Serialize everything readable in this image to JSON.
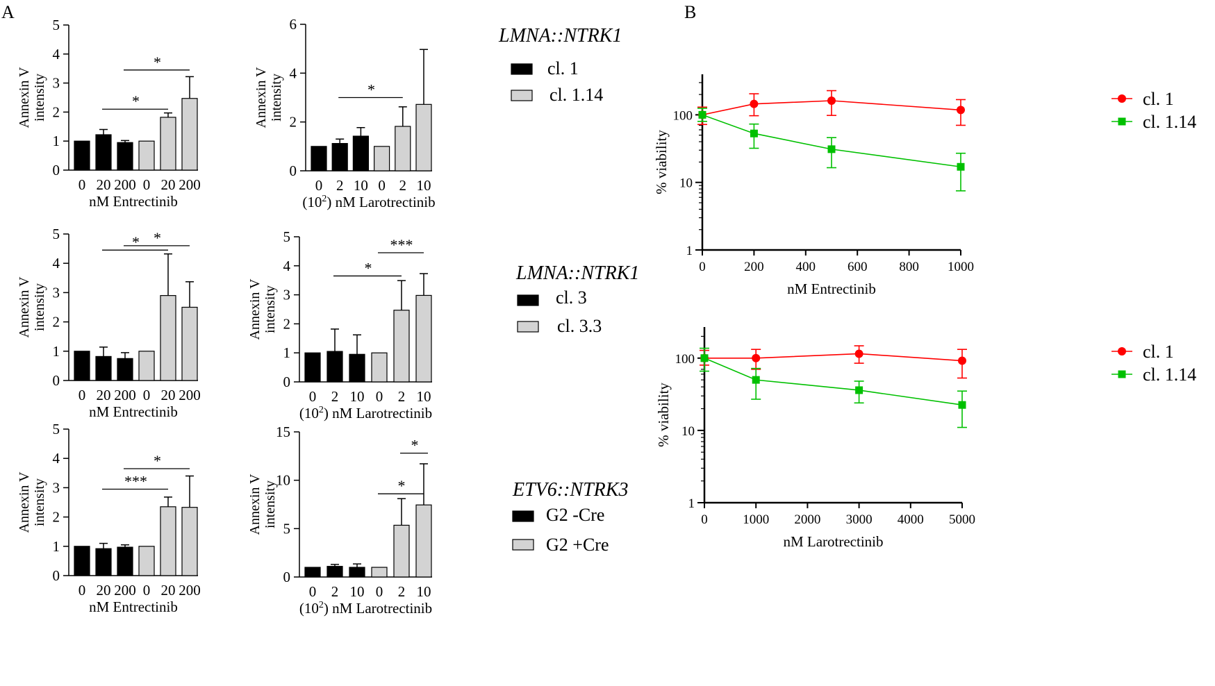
{
  "panel_labels": {
    "a": "A",
    "b": "B"
  },
  "colors": {
    "black_bar": "#000000",
    "gray_bar": "#d3d3d3",
    "red": "#ff0000",
    "green": "#00c000"
  },
  "legends": [
    {
      "title": "LMNA::NTRK1",
      "items": [
        {
          "label": "cl. 1",
          "color": "#000000"
        },
        {
          "label": "cl. 1.14",
          "color": "#d3d3d3"
        }
      ]
    },
    {
      "title": "LMNA::NTRK1",
      "items": [
        {
          "label": "cl. 3",
          "color": "#000000"
        },
        {
          "label": "cl. 3.3",
          "color": "#d3d3d3"
        }
      ]
    },
    {
      "title": "ETV6::NTRK3",
      "items": [
        {
          "label": "G2 -Cre",
          "color": "#000000"
        },
        {
          "label": "G2 +Cre",
          "color": "#d3d3d3"
        }
      ]
    }
  ],
  "chart_data": [
    {
      "id": "a1",
      "type": "bar",
      "ylabel": "Annexin V intensity",
      "xlabel": "nM Entrectinib",
      "ylim": [
        0,
        5
      ],
      "yticks": [
        0,
        1,
        2,
        3,
        4,
        5
      ],
      "categories": [
        "0",
        "20",
        "200",
        "0",
        "20",
        "200"
      ],
      "values": [
        1.0,
        1.22,
        0.95,
        1.0,
        1.82,
        2.47
      ],
      "errors": [
        0,
        0.18,
        0.07,
        0,
        0.15,
        0.75
      ],
      "colors": [
        "#000000",
        "#000000",
        "#000000",
        "#d3d3d3",
        "#d3d3d3",
        "#d3d3d3"
      ],
      "annotations": [
        {
          "text": "*",
          "from": 1,
          "to": 4,
          "y": 2.1
        },
        {
          "text": "*",
          "from": 2,
          "to": 5,
          "y": 3.45
        }
      ]
    },
    {
      "id": "a2",
      "type": "bar",
      "ylabel": "Annexin V intensity",
      "xlabel_sup": "2",
      "xlabel_pre": "(10",
      "xlabel_post": ") nM Larotrectinib",
      "ylim": [
        0,
        6
      ],
      "yticks": [
        0,
        2,
        4,
        6
      ],
      "categories": [
        "0",
        "2",
        "10",
        "0",
        "2",
        "10"
      ],
      "values": [
        1.0,
        1.12,
        1.42,
        1.0,
        1.82,
        2.72
      ],
      "errors": [
        0,
        0.18,
        0.35,
        0,
        0.8,
        2.25
      ],
      "colors": [
        "#000000",
        "#000000",
        "#000000",
        "#d3d3d3",
        "#d3d3d3",
        "#d3d3d3"
      ],
      "annotations": [
        {
          "text": "*",
          "from": 1,
          "to": 4,
          "y": 3.0
        }
      ]
    },
    {
      "id": "a3",
      "type": "bar",
      "ylabel": "Annexin V intensity",
      "xlabel": "nM Entrectinib",
      "ylim": [
        0,
        5
      ],
      "yticks": [
        0,
        1,
        2,
        3,
        4,
        5
      ],
      "categories": [
        "0",
        "20",
        "200",
        "0",
        "20",
        "200"
      ],
      "values": [
        1.0,
        0.82,
        0.75,
        1.0,
        2.9,
        2.5
      ],
      "errors": [
        0,
        0.32,
        0.2,
        0,
        1.42,
        0.87
      ],
      "colors": [
        "#000000",
        "#000000",
        "#000000",
        "#d3d3d3",
        "#d3d3d3",
        "#d3d3d3"
      ],
      "annotations": [
        {
          "text": "*",
          "from": 1,
          "to": 4,
          "y": 4.45
        },
        {
          "text": "*",
          "from": 2,
          "to": 5,
          "y": 4.6
        }
      ]
    },
    {
      "id": "a4",
      "type": "bar",
      "ylabel": "Annexin V intensity",
      "xlabel_sup": "2",
      "xlabel_pre": "(10",
      "xlabel_post": ") nM Larotrectinib",
      "ylim": [
        0,
        5
      ],
      "yticks": [
        0,
        1,
        2,
        3,
        4,
        5
      ],
      "categories": [
        "0",
        "2",
        "10",
        "0",
        "2",
        "10"
      ],
      "values": [
        1.0,
        1.05,
        0.95,
        1.0,
        2.47,
        2.98
      ],
      "errors": [
        0,
        0.77,
        0.67,
        0,
        1.02,
        0.75
      ],
      "colors": [
        "#000000",
        "#000000",
        "#000000",
        "#d3d3d3",
        "#d3d3d3",
        "#d3d3d3"
      ],
      "annotations": [
        {
          "text": "*",
          "from": 1,
          "to": 4,
          "y": 3.65
        },
        {
          "text": "***",
          "from": 3,
          "to": 5,
          "y": 4.45
        }
      ]
    },
    {
      "id": "a5",
      "type": "bar",
      "ylabel": "Annexin V intensity",
      "xlabel": "nM Entrectinib",
      "ylim": [
        0,
        5
      ],
      "yticks": [
        0,
        1,
        2,
        3,
        4,
        5
      ],
      "categories": [
        "0",
        "20",
        "200",
        "0",
        "20",
        "200"
      ],
      "values": [
        1.0,
        0.92,
        0.97,
        1.0,
        2.35,
        2.33
      ],
      "errors": [
        0,
        0.18,
        0.08,
        0,
        0.33,
        1.07
      ],
      "colors": [
        "#000000",
        "#000000",
        "#000000",
        "#d3d3d3",
        "#d3d3d3",
        "#d3d3d3"
      ],
      "annotations": [
        {
          "text": "***",
          "from": 1,
          "to": 4,
          "y": 2.95
        },
        {
          "text": "*",
          "from": 2,
          "to": 5,
          "y": 3.65
        }
      ]
    },
    {
      "id": "a6",
      "type": "bar",
      "ylabel": "Annexin V intensity",
      "xlabel_sup": "2",
      "xlabel_pre": "(10",
      "xlabel_post": ") nM Larotrectinib",
      "ylim": [
        0,
        15
      ],
      "yticks": [
        0,
        5,
        10,
        15
      ],
      "categories": [
        "0",
        "2",
        "10",
        "0",
        "2",
        "10"
      ],
      "values": [
        1.0,
        1.1,
        1.0,
        1.0,
        5.35,
        7.45
      ],
      "errors": [
        0,
        0.2,
        0.35,
        0,
        2.75,
        4.25
      ],
      "colors": [
        "#000000",
        "#000000",
        "#000000",
        "#d3d3d3",
        "#d3d3d3",
        "#d3d3d3"
      ],
      "annotations": [
        {
          "text": "*",
          "from": 3,
          "to": 5,
          "y": 8.6
        },
        {
          "text": "*",
          "from": 4,
          "to": 6,
          "y": 12.8
        }
      ]
    },
    {
      "id": "b1",
      "type": "line",
      "ylabel": "% viability",
      "xlabel": "nM Entrectinib",
      "yscale": "log",
      "ylim": [
        1,
        400
      ],
      "xlim": [
        0,
        1000
      ],
      "xticks": [
        0,
        200,
        400,
        600,
        800,
        1000
      ],
      "yticks": [
        1,
        10,
        100
      ],
      "series": [
        {
          "name": "cl. 1",
          "color": "#ff0000",
          "marker": "circle",
          "x": [
            0,
            200,
            500,
            1000
          ],
          "y": [
            100,
            145,
            162,
            118
          ],
          "err_hi": [
            130,
            205,
            228,
            168
          ],
          "err_lo": [
            72,
            97,
            98,
            70
          ]
        },
        {
          "name": "cl. 1.14",
          "color": "#00c000",
          "marker": "square",
          "x": [
            0,
            200,
            500,
            1000
          ],
          "y": [
            100,
            53,
            31,
            17
          ],
          "err_hi": [
            125,
            73,
            46,
            27
          ],
          "err_lo": [
            80,
            32,
            16.5,
            7.5
          ]
        }
      ]
    },
    {
      "id": "b2",
      "type": "line",
      "ylabel": "% viability",
      "xlabel": "nM Larotrectinib",
      "yscale": "log",
      "ylim": [
        1,
        270
      ],
      "xlim": [
        0,
        5000
      ],
      "xticks": [
        0,
        1000,
        2000,
        3000,
        4000,
        5000
      ],
      "yticks": [
        1,
        10,
        100
      ],
      "series": [
        {
          "name": "cl. 1",
          "color": "#ff0000",
          "marker": "circle",
          "x": [
            0,
            1000,
            3000,
            5000
          ],
          "y": [
            100,
            100,
            115,
            92
          ],
          "err_hi": [
            128,
            132,
            148,
            132
          ],
          "err_lo": [
            80,
            70,
            85,
            53
          ]
        },
        {
          "name": "cl. 1.14",
          "color": "#00c000",
          "marker": "square",
          "x": [
            0,
            1000,
            3000,
            5000
          ],
          "y": [
            100,
            50,
            36,
            22.5
          ],
          "err_hi": [
            137,
            72,
            48,
            35
          ],
          "err_lo": [
            66,
            27,
            24,
            11
          ]
        }
      ]
    }
  ]
}
